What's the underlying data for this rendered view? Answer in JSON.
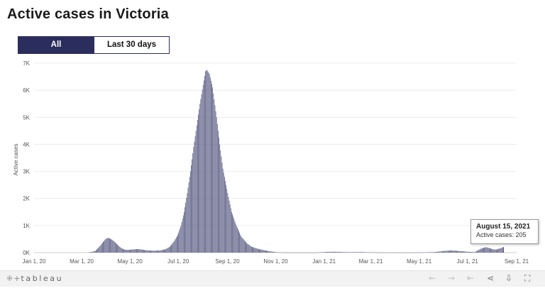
{
  "title": "Active cases in Victoria",
  "toggle": {
    "all_label": "All",
    "last30_label": "Last 30 days",
    "selected": "All"
  },
  "tooltip": {
    "date": "August 15, 2021",
    "label": "Active cases: 205"
  },
  "footer": {
    "logo_text": "tableau"
  },
  "colors": {
    "accent": "#2b2d5c",
    "bar": "#55577f",
    "highlight": "#1f2150"
  },
  "chart_data": {
    "type": "bar",
    "ylabel": "Active cases",
    "xlabel": "",
    "yticks": [
      "0K",
      "1K",
      "2K",
      "3K",
      "4K",
      "5K",
      "6K",
      "7K"
    ],
    "ylim": [
      0,
      7000
    ],
    "xlim": [
      "2020-01-01",
      "2021-09-01"
    ],
    "xticks": [
      "Jan 1, 20",
      "Mar 1, 20",
      "May 1, 20",
      "Jul 1, 20",
      "Sep 1, 20",
      "Nov 1, 20",
      "Jan 1, 21",
      "Mar 1, 21",
      "May 1, 21",
      "Jul 1, 21",
      "Sep 1, 21"
    ],
    "xtick_dates": [
      "2020-01-01",
      "2020-03-01",
      "2020-05-01",
      "2020-07-01",
      "2020-09-01",
      "2020-11-01",
      "2021-01-01",
      "2021-03-01",
      "2021-05-01",
      "2021-07-01",
      "2021-09-01"
    ],
    "grid": true,
    "series": [
      {
        "points": [
          [
            "2020-03-10",
            5
          ],
          [
            "2020-03-18",
            60
          ],
          [
            "2020-03-24",
            250
          ],
          [
            "2020-03-28",
            400
          ],
          [
            "2020-04-01",
            530
          ],
          [
            "2020-04-04",
            540
          ],
          [
            "2020-04-08",
            480
          ],
          [
            "2020-04-12",
            380
          ],
          [
            "2020-04-16",
            260
          ],
          [
            "2020-04-20",
            160
          ],
          [
            "2020-04-24",
            110
          ],
          [
            "2020-04-28",
            100
          ],
          [
            "2020-05-02",
            110
          ],
          [
            "2020-05-06",
            120
          ],
          [
            "2020-05-10",
            130
          ],
          [
            "2020-05-14",
            120
          ],
          [
            "2020-05-18",
            100
          ],
          [
            "2020-05-22",
            85
          ],
          [
            "2020-05-26",
            75
          ],
          [
            "2020-06-01",
            70
          ],
          [
            "2020-06-08",
            80
          ],
          [
            "2020-06-15",
            130
          ],
          [
            "2020-06-20",
            220
          ],
          [
            "2020-06-25",
            400
          ],
          [
            "2020-06-30",
            650
          ],
          [
            "2020-07-04",
            1000
          ],
          [
            "2020-07-08",
            1500
          ],
          [
            "2020-07-12",
            2200
          ],
          [
            "2020-07-16",
            3000
          ],
          [
            "2020-07-20",
            3900
          ],
          [
            "2020-07-24",
            4700
          ],
          [
            "2020-07-28",
            5500
          ],
          [
            "2020-08-01",
            6200
          ],
          [
            "2020-08-04",
            6700
          ],
          [
            "2020-08-06",
            6750
          ],
          [
            "2020-08-09",
            6600
          ],
          [
            "2020-08-13",
            6100
          ],
          [
            "2020-08-18",
            5000
          ],
          [
            "2020-08-22",
            4000
          ],
          [
            "2020-08-26",
            3100
          ],
          [
            "2020-09-01",
            2200
          ],
          [
            "2020-09-06",
            1500
          ],
          [
            "2020-09-12",
            1000
          ],
          [
            "2020-09-18",
            600
          ],
          [
            "2020-09-25",
            350
          ],
          [
            "2020-10-01",
            220
          ],
          [
            "2020-10-08",
            150
          ],
          [
            "2020-10-15",
            100
          ],
          [
            "2020-10-22",
            60
          ],
          [
            "2020-10-29",
            25
          ],
          [
            "2020-11-05",
            10
          ],
          [
            "2020-11-15",
            3
          ],
          [
            "2020-11-25",
            0
          ],
          [
            "2020-12-20",
            0
          ],
          [
            "2021-01-01",
            20
          ],
          [
            "2021-01-10",
            30
          ],
          [
            "2021-01-20",
            25
          ],
          [
            "2021-02-01",
            15
          ],
          [
            "2021-02-15",
            20
          ],
          [
            "2021-03-01",
            10
          ],
          [
            "2021-03-15",
            5
          ],
          [
            "2021-04-15",
            0
          ],
          [
            "2021-05-01",
            5
          ],
          [
            "2021-05-20",
            20
          ],
          [
            "2021-06-01",
            60
          ],
          [
            "2021-06-10",
            80
          ],
          [
            "2021-06-20",
            60
          ],
          [
            "2021-07-01",
            30
          ],
          [
            "2021-07-10",
            20
          ],
          [
            "2021-07-18",
            150
          ],
          [
            "2021-07-24",
            200
          ],
          [
            "2021-07-28",
            170
          ],
          [
            "2021-08-02",
            120
          ],
          [
            "2021-08-06",
            110
          ],
          [
            "2021-08-10",
            150
          ],
          [
            "2021-08-13",
            180
          ],
          [
            "2021-08-15",
            205
          ]
        ]
      }
    ]
  }
}
